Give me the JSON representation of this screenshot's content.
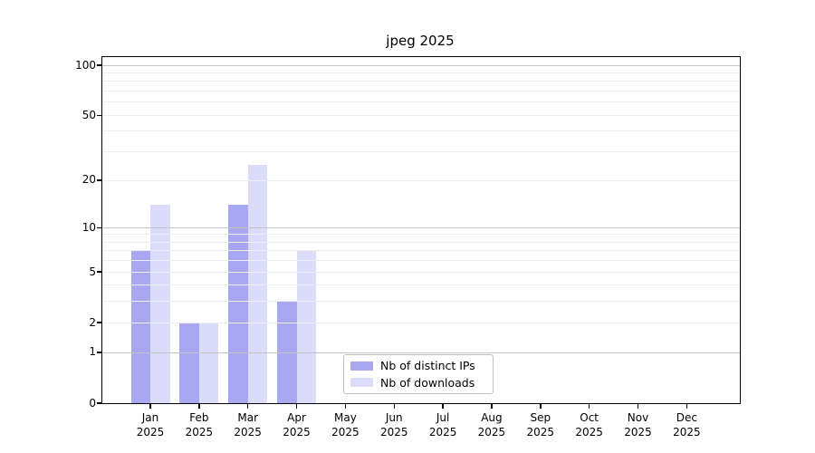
{
  "chart_data": {
    "type": "bar",
    "title": "jpeg 2025",
    "categories": [
      "Jan 2025",
      "Feb 2025",
      "Mar 2025",
      "Apr 2025",
      "May 2025",
      "Jun 2025",
      "Jul 2025",
      "Aug 2025",
      "Sep 2025",
      "Oct 2025",
      "Nov 2025",
      "Dec 2025"
    ],
    "series": [
      {
        "name": "Nb of distinct IPs",
        "color": "#a8a8f2",
        "values": [
          7,
          2,
          14,
          3,
          0,
          0,
          0,
          0,
          0,
          0,
          0,
          0
        ]
      },
      {
        "name": "Nb of downloads",
        "color": "#dbdbfa",
        "values": [
          14,
          2,
          25,
          7,
          0,
          0,
          0,
          0,
          0,
          0,
          0,
          0
        ]
      }
    ],
    "y_scale": "log(1+v)",
    "ylim": [
      0,
      112
    ],
    "y_ticks": [
      100,
      50,
      20,
      10,
      5,
      2,
      1,
      0
    ],
    "gridlines": {
      "major": [
        1,
        10,
        100
      ],
      "minor": [
        2,
        3,
        4,
        5,
        6,
        7,
        8,
        9,
        20,
        30,
        40,
        50,
        60,
        70,
        80,
        90
      ]
    },
    "grid": "horizontal",
    "legend_position": "lower-center-inside",
    "xlabel": "",
    "ylabel": ""
  },
  "colors": {
    "grid_major": "#c4c4c4",
    "grid_minor": "#ededed",
    "axis": "#000000",
    "legend_border": "#bfbfbf",
    "background": "#ffffff"
  }
}
